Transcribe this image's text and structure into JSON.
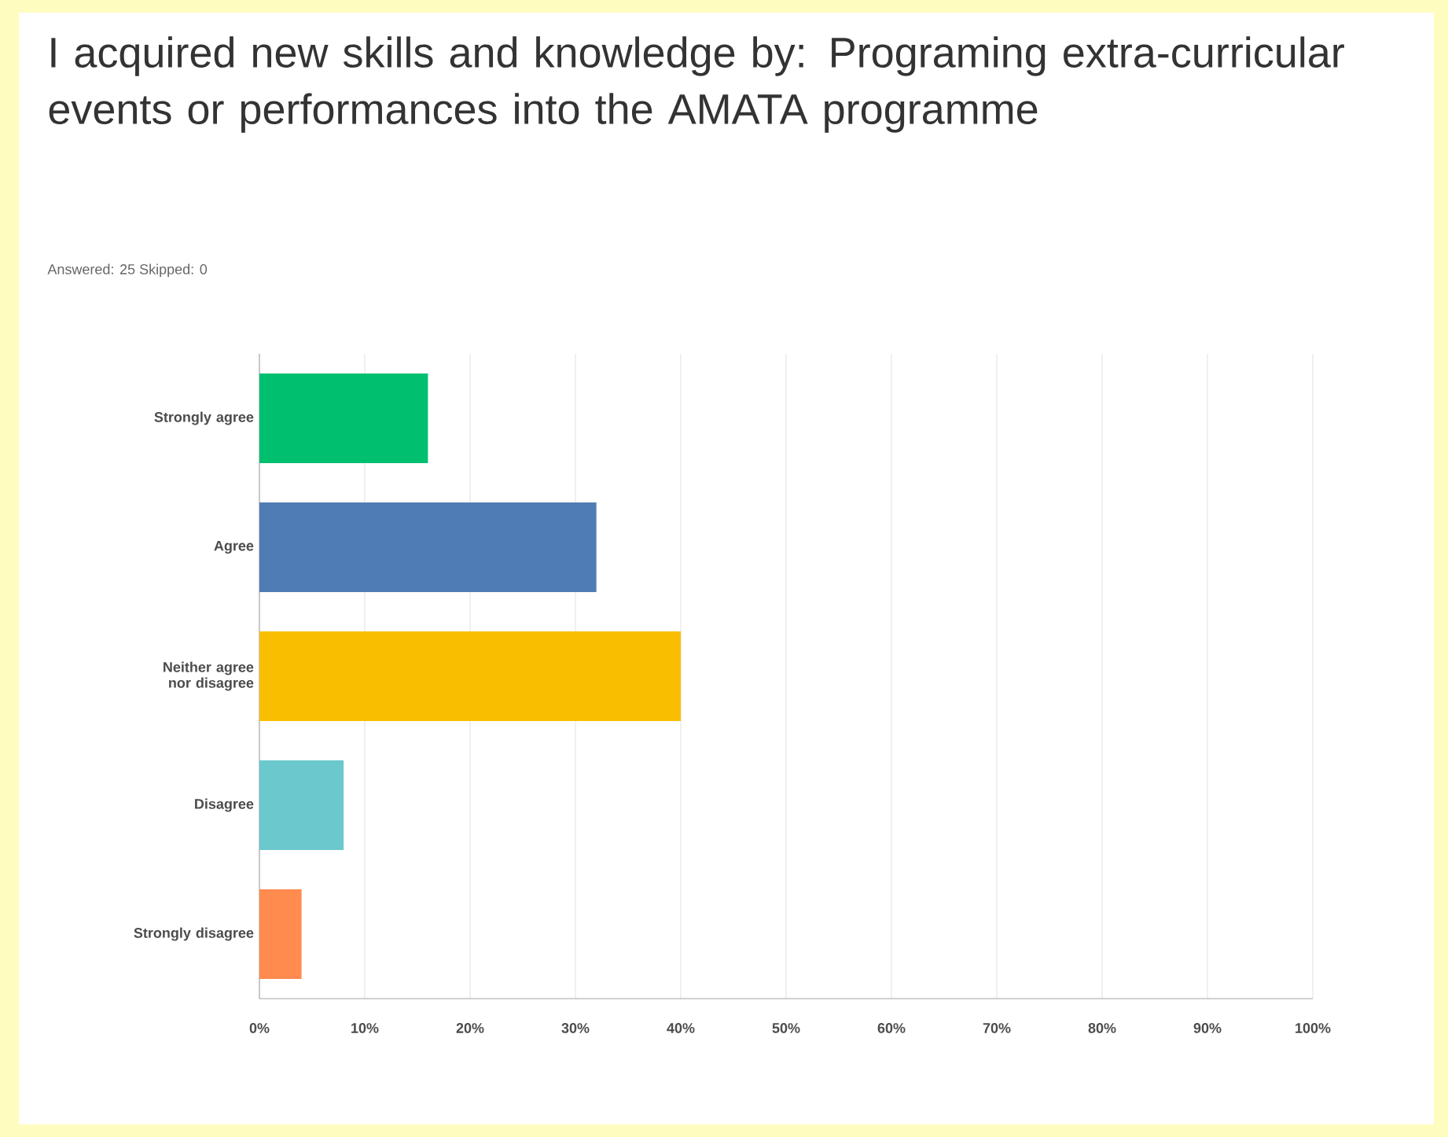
{
  "chart_data": {
    "type": "bar",
    "orientation": "horizontal",
    "title": "I acquired new skills and knowledge by: Programing extra-curricular events or performances into the AMATA programme",
    "subtitle": "Answered: 25    Skipped: 0",
    "categories": [
      "Strongly agree",
      "Agree",
      "Neither agree nor disagree",
      "Disagree",
      "Strongly disagree"
    ],
    "values": [
      16,
      32,
      40,
      8,
      4
    ],
    "colors": [
      "#00bf6f",
      "#507cb6",
      "#f9be00",
      "#6bc8cd",
      "#ff8b4f"
    ],
    "xlim": [
      0,
      100
    ],
    "xticks": [
      {
        "value": 0,
        "label": "0%"
      },
      {
        "value": 10,
        "label": "10%"
      },
      {
        "value": 20,
        "label": "20%"
      },
      {
        "value": 30,
        "label": "30%"
      },
      {
        "value": 40,
        "label": "40%"
      },
      {
        "value": 50,
        "label": "50%"
      },
      {
        "value": 60,
        "label": "60%"
      },
      {
        "value": 70,
        "label": "70%"
      },
      {
        "value": 80,
        "label": "80%"
      },
      {
        "value": 90,
        "label": "90%"
      },
      {
        "value": 100,
        "label": "100%"
      }
    ],
    "grid": "x"
  }
}
